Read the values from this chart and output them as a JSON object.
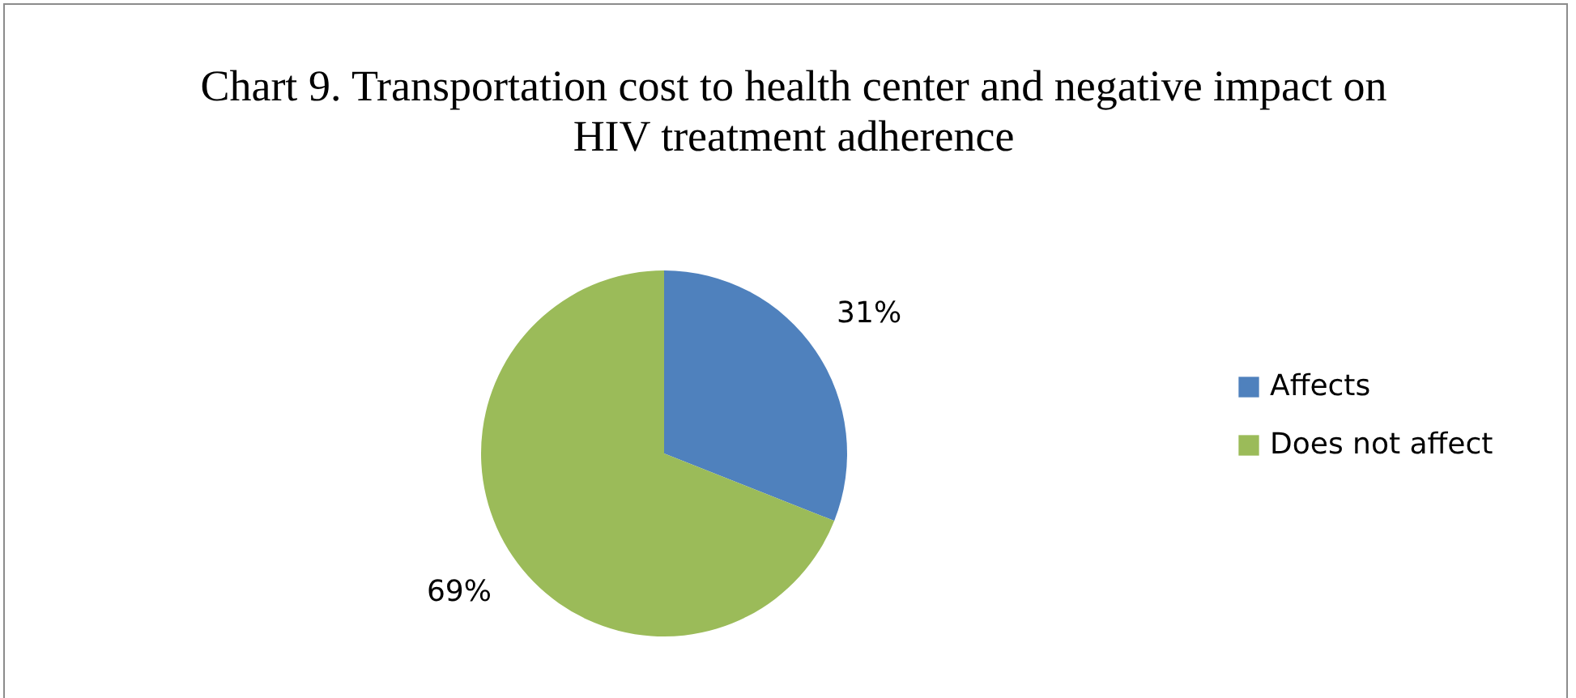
{
  "chart_data": {
    "type": "pie",
    "title": "Chart 9. Transportation cost to health center and negative impact on HIV treatment adherence",
    "categories": [
      "Affects",
      "Does not affect"
    ],
    "values": [
      31,
      69
    ],
    "colors": [
      "#4f81bd",
      "#9bbb59"
    ],
    "value_labels": [
      "31%",
      "69%"
    ],
    "legend": "right"
  }
}
